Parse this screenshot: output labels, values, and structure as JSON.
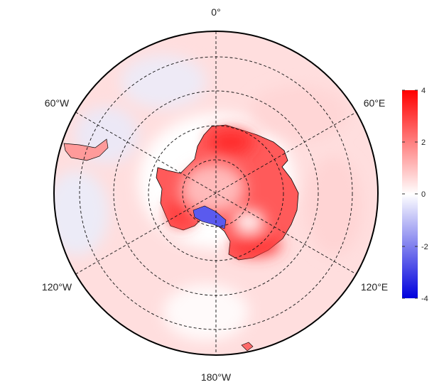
{
  "map": {
    "projection": "south-polar stereographic",
    "longitude_labels": {
      "top": "0°",
      "upper_left": "60°W",
      "upper_right": "60°E",
      "lower_left": "120°W",
      "lower_right": "120°E",
      "bottom": "180°W"
    },
    "graticule_style": "dashed",
    "colors": {
      "negative": "#0000dd",
      "zero": "#ffffff",
      "positive": "#ff0000",
      "outline": "#000000",
      "coastline": "#000000"
    }
  },
  "colorbar": {
    "range": [
      -4,
      4
    ],
    "ticks": [
      "4",
      "2",
      "0",
      "-2",
      "-4"
    ]
  }
}
